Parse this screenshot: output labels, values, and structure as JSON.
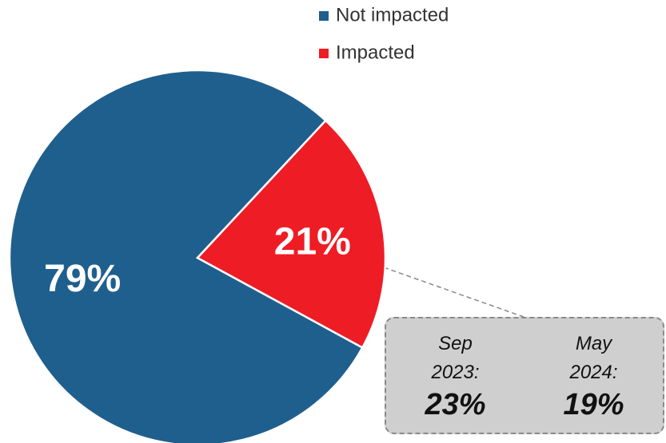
{
  "chart_data": {
    "type": "pie",
    "categories": [
      "Not impacted",
      "Impacted"
    ],
    "values": [
      79,
      21
    ],
    "value_labels": [
      "79%",
      "21%"
    ],
    "colors": [
      "#1f5f8e",
      "#ee1c25"
    ],
    "legend": "top-right",
    "callout": [
      {
        "period": "Sep 2023:",
        "value_label": "23%"
      },
      {
        "period": "May 2024:",
        "value_label": "19%"
      }
    ]
  }
}
